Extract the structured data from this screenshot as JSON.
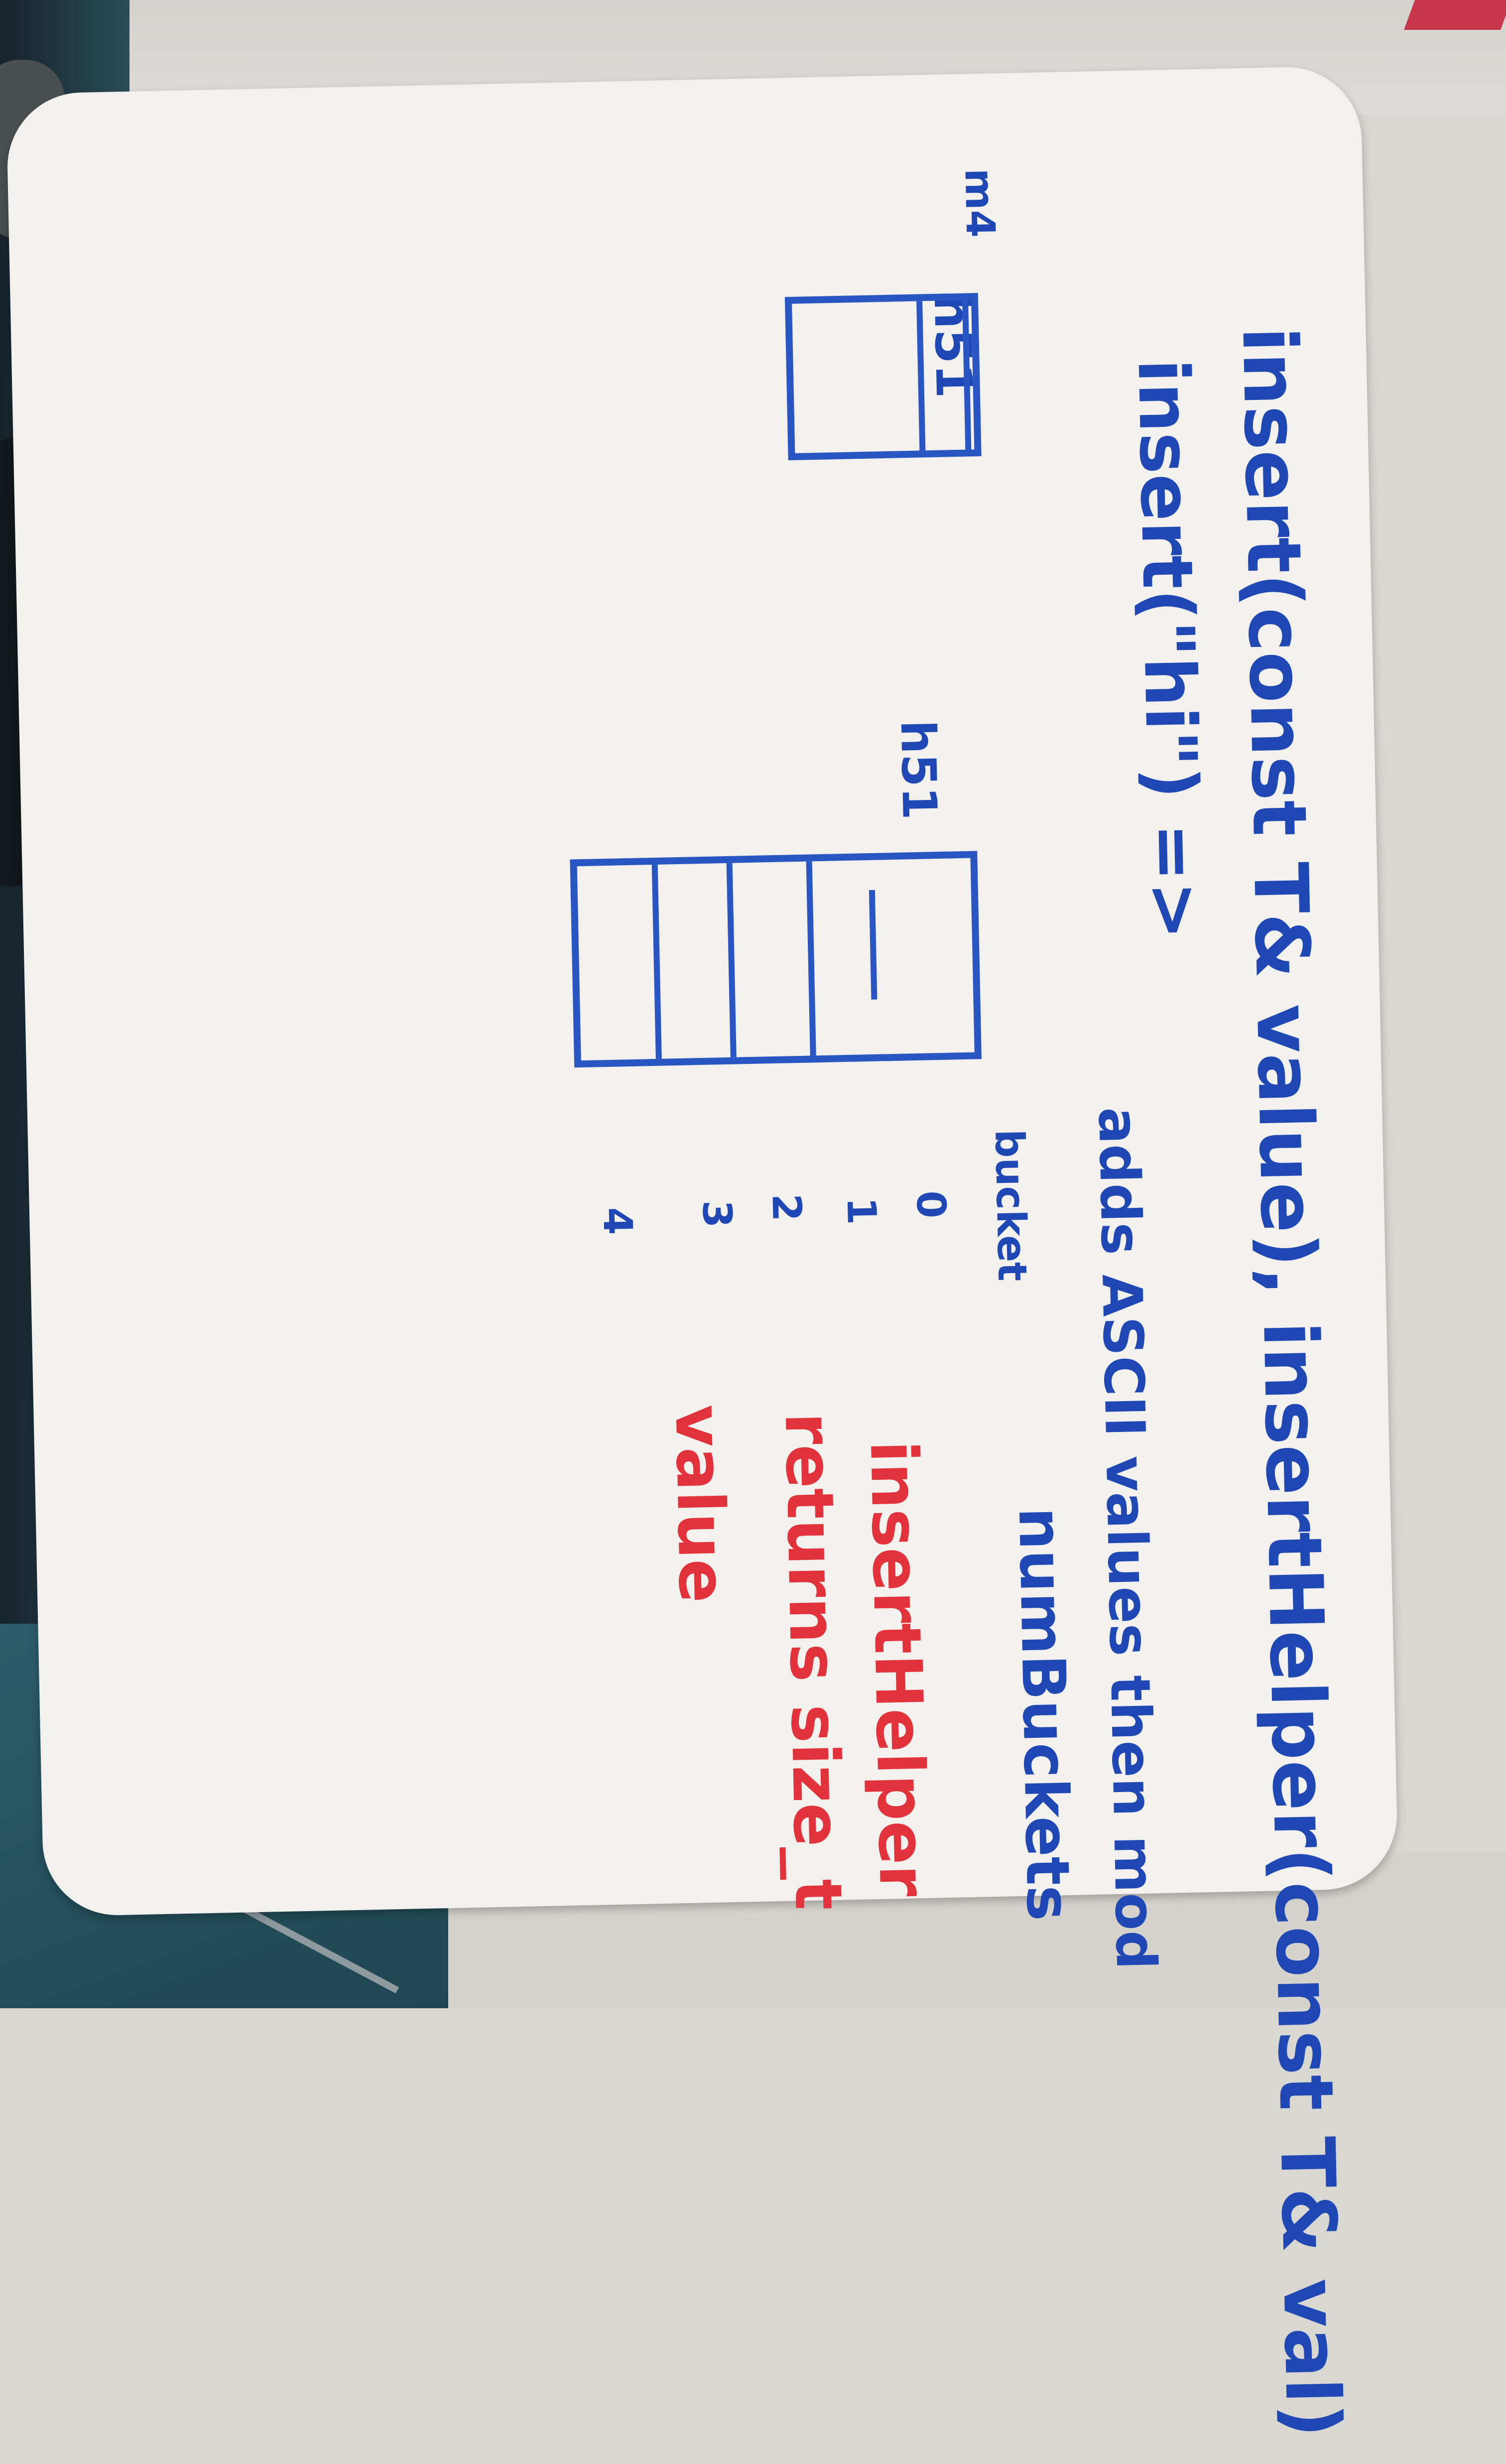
{
  "board": {
    "line1": "insert(const T& value)",
    "line1b": "insertHelper(const T& val)",
    "line2": "insert(\"hi\") =>",
    "description": "adds ASCII values then mod",
    "numBuckets": "numBuckets",
    "red_line1": "insertHelper",
    "red_line2": "returns size_t",
    "red_line3": "value",
    "bucket_label": "bucket",
    "bucket_numbers": [
      "0",
      "1",
      "2",
      "3",
      "4"
    ],
    "hash_label_1": "h51",
    "hash_label_2": "h51",
    "margin_label": "m4"
  },
  "colors": {
    "blue_marker": "#1f48b5",
    "red_marker": "#e2323c",
    "board": "#f2f1ee"
  }
}
